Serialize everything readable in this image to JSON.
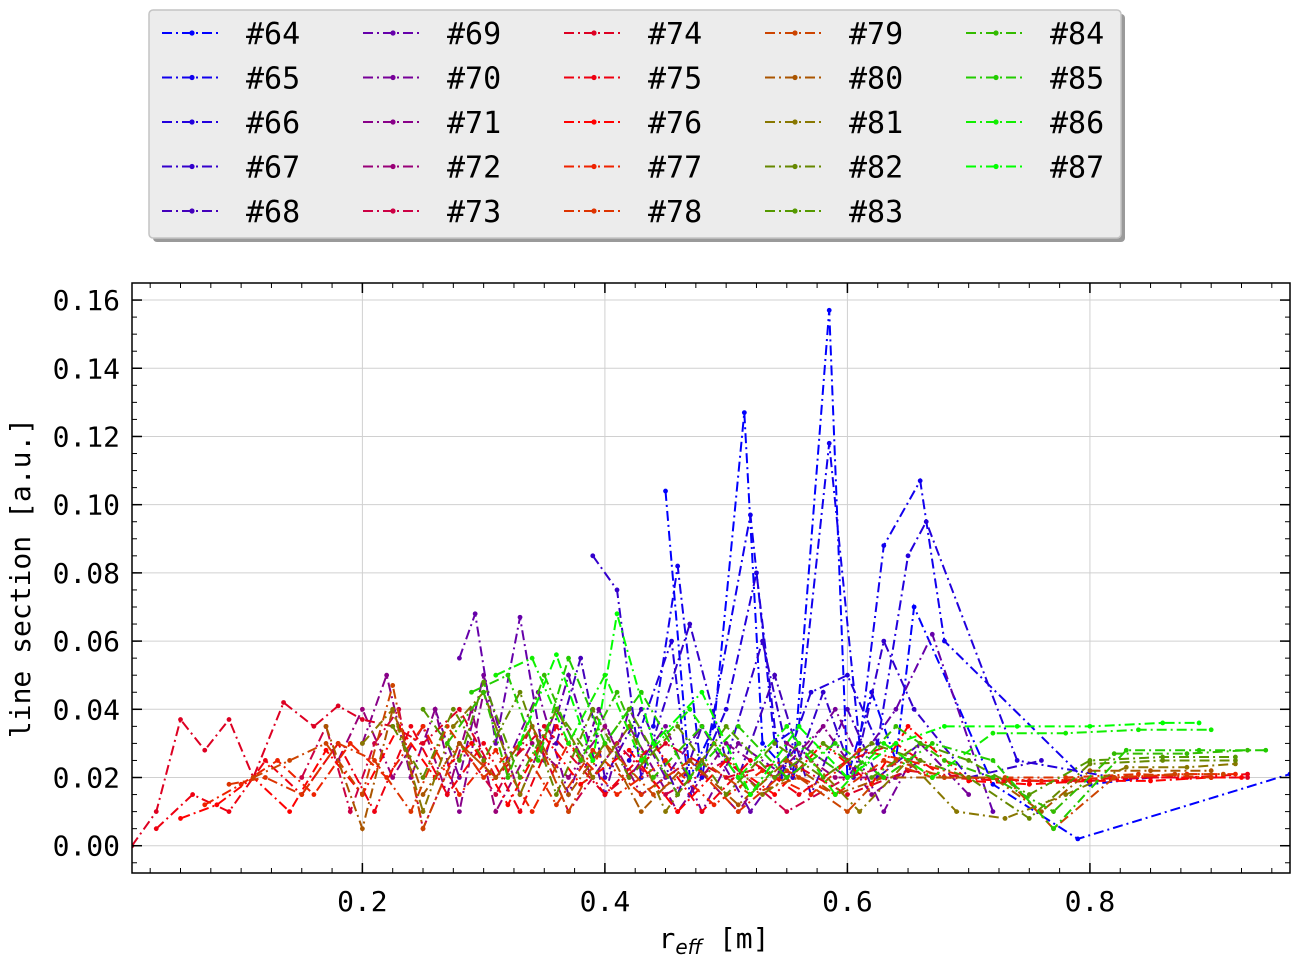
{
  "chart_data": {
    "type": "line",
    "xlabel_base": "r",
    "xlabel_sub": "eff",
    "xlabel_unit": "[m]",
    "ylabel": "line section [a.u.]",
    "xlim": [
      0.01,
      0.965
    ],
    "ylim": [
      -0.008,
      0.165
    ],
    "xticks": [
      0.2,
      0.4,
      0.6,
      0.8
    ],
    "xtick_labels": [
      "0.2",
      "0.4",
      "0.6",
      "0.8"
    ],
    "yticks": [
      0.0,
      0.02,
      0.04,
      0.06,
      0.08,
      0.1,
      0.12,
      0.14,
      0.16
    ],
    "ytick_labels": [
      "0.00",
      "0.02",
      "0.04",
      "0.06",
      "0.08",
      "0.10",
      "0.12",
      "0.14",
      "0.16"
    ],
    "grid": true,
    "legend_position": "top",
    "series": [
      {
        "name": "#64",
        "color": "#0000ff",
        "x": [
          0.45,
          0.47,
          0.49,
          0.515,
          0.53,
          0.555,
          0.585,
          0.6,
          0.62,
          0.64,
          0.655,
          0.72,
          0.79,
          0.965
        ],
        "y": [
          0.104,
          0.02,
          0.035,
          0.127,
          0.03,
          0.02,
          0.157,
          0.02,
          0.045,
          0.025,
          0.07,
          0.018,
          0.002,
          0.021
        ]
      },
      {
        "name": "#65",
        "color": "#1100ee",
        "x": [
          0.44,
          0.46,
          0.48,
          0.52,
          0.54,
          0.56,
          0.585,
          0.61,
          0.63,
          0.66,
          0.68,
          0.8,
          0.85
        ],
        "y": [
          0.035,
          0.082,
          0.02,
          0.097,
          0.03,
          0.035,
          0.118,
          0.03,
          0.088,
          0.107,
          0.06,
          0.018,
          0.02
        ]
      },
      {
        "name": "#66",
        "color": "#2200dd",
        "x": [
          0.42,
          0.455,
          0.47,
          0.5,
          0.525,
          0.545,
          0.57,
          0.6,
          0.625,
          0.65,
          0.665,
          0.74,
          0.82
        ],
        "y": [
          0.025,
          0.06,
          0.015,
          0.04,
          0.08,
          0.02,
          0.045,
          0.05,
          0.03,
          0.085,
          0.095,
          0.025,
          0.02
        ]
      },
      {
        "name": "#67",
        "color": "#3300cc",
        "x": [
          0.39,
          0.41,
          0.43,
          0.47,
          0.5,
          0.53,
          0.555,
          0.58,
          0.605,
          0.63,
          0.655,
          0.7,
          0.76
        ],
        "y": [
          0.085,
          0.075,
          0.02,
          0.065,
          0.025,
          0.06,
          0.02,
          0.045,
          0.02,
          0.06,
          0.04,
          0.02,
          0.025
        ]
      },
      {
        "name": "#68",
        "color": "#4400bb",
        "x": [
          0.36,
          0.38,
          0.4,
          0.43,
          0.46,
          0.48,
          0.51,
          0.54,
          0.57,
          0.6,
          0.625,
          0.66
        ],
        "y": [
          0.03,
          0.055,
          0.02,
          0.04,
          0.015,
          0.035,
          0.02,
          0.05,
          0.015,
          0.04,
          0.02,
          0.03
        ]
      },
      {
        "name": "#69",
        "color": "#6600aa",
        "x": [
          0.28,
          0.293,
          0.31,
          0.33,
          0.35,
          0.37,
          0.4,
          0.42,
          0.45,
          0.48,
          0.52,
          0.56,
          0.6,
          0.64,
          0.67,
          0.72
        ],
        "y": [
          0.055,
          0.068,
          0.03,
          0.067,
          0.025,
          0.05,
          0.015,
          0.04,
          0.02,
          0.035,
          0.01,
          0.03,
          0.02,
          0.04,
          0.062,
          0.01
        ]
      },
      {
        "name": "#70",
        "color": "#770099",
        "x": [
          0.26,
          0.28,
          0.3,
          0.32,
          0.345,
          0.37,
          0.395,
          0.42,
          0.45,
          0.48,
          0.51,
          0.55,
          0.59,
          0.63,
          0.66,
          0.7
        ],
        "y": [
          0.04,
          0.02,
          0.05,
          0.025,
          0.045,
          0.015,
          0.04,
          0.02,
          0.035,
          0.01,
          0.03,
          0.02,
          0.04,
          0.01,
          0.03,
          0.015
        ]
      },
      {
        "name": "#71",
        "color": "#880088",
        "x": [
          0.2,
          0.22,
          0.24,
          0.26,
          0.28,
          0.3,
          0.33,
          0.36,
          0.39,
          0.42,
          0.46,
          0.5,
          0.54,
          0.58,
          0.62,
          0.66
        ],
        "y": [
          0.03,
          0.05,
          0.02,
          0.04,
          0.01,
          0.045,
          0.015,
          0.04,
          0.02,
          0.035,
          0.01,
          0.03,
          0.02,
          0.035,
          0.015,
          0.025
        ]
      },
      {
        "name": "#72",
        "color": "#990077",
        "x": [
          0.18,
          0.2,
          0.225,
          0.25,
          0.27,
          0.29,
          0.31,
          0.34,
          0.37,
          0.4,
          0.43,
          0.47,
          0.51,
          0.55,
          0.59,
          0.64
        ],
        "y": [
          0.025,
          0.04,
          0.02,
          0.035,
          0.015,
          0.04,
          0.01,
          0.03,
          0.02,
          0.035,
          0.015,
          0.025,
          0.01,
          0.03,
          0.02,
          0.02
        ]
      },
      {
        "name": "#73",
        "color": "#cc0044",
        "x": [
          0.15,
          0.17,
          0.19,
          0.21,
          0.23,
          0.25,
          0.28,
          0.31,
          0.34,
          0.37,
          0.41,
          0.45,
          0.5,
          0.55,
          0.6,
          0.65
        ],
        "y": [
          0.02,
          0.035,
          0.01,
          0.03,
          0.04,
          0.005,
          0.03,
          0.015,
          0.035,
          0.01,
          0.03,
          0.015,
          0.025,
          0.01,
          0.02,
          0.025
        ]
      },
      {
        "name": "#74",
        "color": "#dd0022",
        "x": [
          0.01,
          0.03,
          0.05,
          0.07,
          0.09,
          0.11,
          0.135,
          0.16,
          0.18,
          0.2,
          0.225,
          0.25,
          0.28,
          0.31,
          0.35,
          0.4,
          0.45,
          0.5,
          0.55,
          0.6,
          0.65,
          0.7,
          0.75,
          0.8,
          0.85,
          0.9,
          0.93
        ],
        "y": [
          0.0,
          0.01,
          0.037,
          0.028,
          0.037,
          0.02,
          0.042,
          0.035,
          0.041,
          0.037,
          0.035,
          0.03,
          0.04,
          0.02,
          0.035,
          0.015,
          0.03,
          0.02,
          0.025,
          0.015,
          0.022,
          0.02,
          0.019,
          0.019,
          0.02,
          0.02,
          0.02
        ]
      },
      {
        "name": "#75",
        "color": "#ee0011",
        "x": [
          0.03,
          0.06,
          0.09,
          0.12,
          0.15,
          0.18,
          0.21,
          0.24,
          0.27,
          0.3,
          0.33,
          0.36,
          0.4,
          0.44,
          0.48,
          0.52,
          0.56,
          0.6,
          0.64,
          0.68,
          0.73,
          0.78,
          0.83,
          0.88,
          0.93
        ],
        "y": [
          0.005,
          0.015,
          0.01,
          0.025,
          0.015,
          0.03,
          0.01,
          0.035,
          0.015,
          0.03,
          0.01,
          0.035,
          0.015,
          0.03,
          0.01,
          0.025,
          0.015,
          0.025,
          0.03,
          0.02,
          0.019,
          0.019,
          0.02,
          0.02,
          0.021
        ]
      },
      {
        "name": "#76",
        "color": "#ff0000",
        "x": [
          0.05,
          0.08,
          0.11,
          0.14,
          0.17,
          0.2,
          0.23,
          0.26,
          0.29,
          0.32,
          0.35,
          0.38,
          0.42,
          0.46,
          0.5,
          0.54,
          0.58,
          0.62,
          0.65,
          0.7,
          0.75,
          0.8,
          0.85,
          0.9,
          0.925
        ],
        "y": [
          0.008,
          0.012,
          0.02,
          0.01,
          0.028,
          0.015,
          0.035,
          0.02,
          0.03,
          0.012,
          0.032,
          0.018,
          0.028,
          0.01,
          0.025,
          0.015,
          0.03,
          0.018,
          0.035,
          0.019,
          0.018,
          0.019,
          0.019,
          0.02,
          0.02
        ]
      },
      {
        "name": "#77",
        "color": "#ee2200",
        "x": [
          0.07,
          0.1,
          0.13,
          0.16,
          0.19,
          0.22,
          0.25,
          0.28,
          0.31,
          0.34,
          0.37,
          0.41,
          0.45,
          0.49,
          0.53,
          0.57,
          0.61,
          0.65,
          0.7,
          0.76,
          0.82,
          0.88,
          0.92
        ],
        "y": [
          0.012,
          0.018,
          0.025,
          0.015,
          0.03,
          0.02,
          0.035,
          0.015,
          0.028,
          0.01,
          0.03,
          0.015,
          0.025,
          0.012,
          0.022,
          0.015,
          0.028,
          0.025,
          0.02,
          0.019,
          0.02,
          0.021,
          0.021
        ]
      },
      {
        "name": "#78",
        "color": "#dd3300",
        "x": [
          0.09,
          0.12,
          0.15,
          0.18,
          0.21,
          0.24,
          0.27,
          0.3,
          0.33,
          0.36,
          0.39,
          0.43,
          0.47,
          0.51,
          0.55,
          0.59,
          0.63,
          0.67,
          0.72,
          0.78,
          0.84,
          0.9
        ],
        "y": [
          0.018,
          0.02,
          0.015,
          0.03,
          0.025,
          0.01,
          0.035,
          0.02,
          0.03,
          0.012,
          0.028,
          0.015,
          0.025,
          0.01,
          0.022,
          0.015,
          0.025,
          0.02,
          0.02,
          0.02,
          0.021,
          0.02
        ]
      },
      {
        "name": "#79",
        "color": "#cc4400",
        "x": [
          0.11,
          0.14,
          0.17,
          0.2,
          0.225,
          0.25,
          0.28,
          0.31,
          0.34,
          0.37,
          0.4,
          0.44,
          0.48,
          0.52,
          0.56,
          0.6,
          0.64,
          0.68,
          0.73,
          0.77,
          0.82,
          0.87,
          0.91
        ],
        "y": [
          0.02,
          0.025,
          0.03,
          0.015,
          0.047,
          0.005,
          0.03,
          0.02,
          0.035,
          0.01,
          0.03,
          0.015,
          0.025,
          0.015,
          0.02,
          0.01,
          0.025,
          0.02,
          0.02,
          0.005,
          0.02,
          0.021,
          0.021
        ]
      },
      {
        "name": "#80",
        "color": "#aa5500",
        "x": [
          0.17,
          0.2,
          0.225,
          0.25,
          0.28,
          0.31,
          0.34,
          0.37,
          0.4,
          0.43,
          0.47,
          0.51,
          0.55,
          0.59,
          0.63,
          0.67,
          0.72,
          0.76,
          0.8,
          0.85,
          0.9
        ],
        "y": [
          0.035,
          0.005,
          0.04,
          0.015,
          0.03,
          0.02,
          0.035,
          0.015,
          0.03,
          0.01,
          0.025,
          0.012,
          0.025,
          0.015,
          0.02,
          0.02,
          0.02,
          0.01,
          0.022,
          0.022,
          0.022
        ]
      },
      {
        "name": "#81",
        "color": "#887700",
        "x": [
          0.2,
          0.225,
          0.25,
          0.275,
          0.3,
          0.33,
          0.36,
          0.39,
          0.42,
          0.45,
          0.49,
          0.53,
          0.57,
          0.61,
          0.65,
          0.69,
          0.73,
          0.78,
          0.83,
          0.88,
          0.92
        ],
        "y": [
          0.03,
          0.04,
          0.01,
          0.035,
          0.045,
          0.015,
          0.04,
          0.02,
          0.035,
          0.01,
          0.03,
          0.015,
          0.025,
          0.01,
          0.025,
          0.01,
          0.008,
          0.015,
          0.023,
          0.023,
          0.024
        ]
      },
      {
        "name": "#82",
        "color": "#668800",
        "x": [
          0.225,
          0.25,
          0.275,
          0.3,
          0.33,
          0.36,
          0.39,
          0.42,
          0.46,
          0.5,
          0.54,
          0.58,
          0.62,
          0.66,
          0.7,
          0.75,
          0.8,
          0.86,
          0.92
        ],
        "y": [
          0.035,
          0.02,
          0.04,
          0.025,
          0.045,
          0.015,
          0.04,
          0.02,
          0.035,
          0.015,
          0.03,
          0.02,
          0.03,
          0.025,
          0.02,
          0.008,
          0.024,
          0.025,
          0.025
        ]
      },
      {
        "name": "#83",
        "color": "#559900",
        "x": [
          0.25,
          0.28,
          0.3,
          0.33,
          0.36,
          0.39,
          0.42,
          0.46,
          0.5,
          0.54,
          0.58,
          0.62,
          0.66,
          0.7,
          0.75,
          0.8,
          0.86,
          0.92
        ],
        "y": [
          0.04,
          0.025,
          0.048,
          0.02,
          0.04,
          0.025,
          0.04,
          0.015,
          0.035,
          0.02,
          0.03,
          0.02,
          0.03,
          0.025,
          0.015,
          0.025,
          0.026,
          0.026
        ]
      },
      {
        "name": "#84",
        "color": "#33bb00",
        "x": [
          0.27,
          0.3,
          0.32,
          0.35,
          0.38,
          0.41,
          0.44,
          0.48,
          0.52,
          0.56,
          0.6,
          0.64,
          0.68,
          0.72,
          0.77,
          0.82,
          0.88,
          0.93
        ],
        "y": [
          0.03,
          0.045,
          0.02,
          0.05,
          0.025,
          0.045,
          0.02,
          0.035,
          0.015,
          0.03,
          0.02,
          0.035,
          0.025,
          0.02,
          0.01,
          0.027,
          0.027,
          0.028
        ]
      },
      {
        "name": "#85",
        "color": "#22cc00",
        "x": [
          0.29,
          0.32,
          0.345,
          0.37,
          0.4,
          0.43,
          0.47,
          0.51,
          0.55,
          0.59,
          0.63,
          0.67,
          0.72,
          0.77,
          0.83,
          0.89,
          0.945
        ],
        "y": [
          0.045,
          0.05,
          0.025,
          0.055,
          0.03,
          0.045,
          0.02,
          0.035,
          0.02,
          0.03,
          0.02,
          0.03,
          0.025,
          0.005,
          0.028,
          0.028,
          0.028
        ]
      },
      {
        "name": "#86",
        "color": "#11ee00",
        "x": [
          0.31,
          0.34,
          0.37,
          0.4,
          0.43,
          0.47,
          0.51,
          0.55,
          0.59,
          0.63,
          0.67,
          0.72,
          0.78,
          0.84,
          0.9
        ],
        "y": [
          0.05,
          0.055,
          0.03,
          0.05,
          0.025,
          0.04,
          0.02,
          0.035,
          0.015,
          0.03,
          0.02,
          0.033,
          0.033,
          0.034,
          0.034
        ]
      },
      {
        "name": "#87",
        "color": "#00ff00",
        "x": [
          0.33,
          0.36,
          0.39,
          0.41,
          0.44,
          0.48,
          0.52,
          0.56,
          0.6,
          0.64,
          0.68,
          0.74,
          0.8,
          0.86,
          0.89
        ],
        "y": [
          0.03,
          0.056,
          0.025,
          0.068,
          0.03,
          0.045,
          0.015,
          0.035,
          0.02,
          0.03,
          0.035,
          0.035,
          0.035,
          0.036,
          0.036
        ]
      }
    ]
  }
}
